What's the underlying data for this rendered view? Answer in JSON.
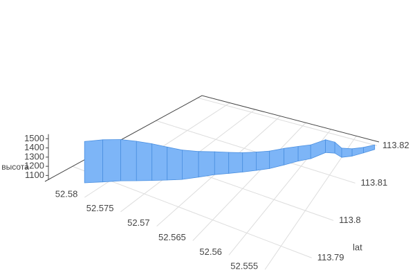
{
  "chart_data": {
    "type": "ribbon3d",
    "color": "#7db5f7",
    "x": [
      52.582,
      52.5805,
      52.579,
      52.5775,
      52.576,
      52.5745,
      52.573,
      52.5715,
      52.57,
      52.5685,
      52.567,
      52.5655,
      52.564,
      52.5625,
      52.561,
      52.5595,
      52.558,
      52.5565,
      52.555,
      52.5535,
      52.552,
      52.5505
    ],
    "y": [
      113.787,
      113.789,
      113.791,
      113.7925,
      113.794,
      113.7955,
      113.797,
      113.799,
      113.801,
      113.8025,
      113.804,
      113.8055,
      113.807,
      113.809,
      113.811,
      113.8125,
      113.815,
      113.8155,
      113.815,
      113.816,
      113.8175,
      113.819
    ],
    "z": [
      1500,
      1510,
      1500,
      1480,
      1450,
      1410,
      1370,
      1330,
      1300,
      1280,
      1260,
      1250,
      1240,
      1230,
      1210,
      1200,
      1190,
      1170,
      1150,
      1130,
      1110,
      1100
    ],
    "xlim": [
      52.5505,
      52.5855
    ],
    "xticks": [
      52.555,
      52.56,
      52.565,
      52.57,
      52.575,
      52.58
    ],
    "ylim": [
      113.7834,
      113.821
    ],
    "yticks": [
      113.79,
      113.8,
      113.81,
      113.82
    ],
    "ytitle": "lat",
    "zlim": [
      1050,
      1550
    ],
    "zticks": [
      1100,
      1200,
      1300,
      1400,
      1500
    ],
    "ztitle": "высота"
  }
}
